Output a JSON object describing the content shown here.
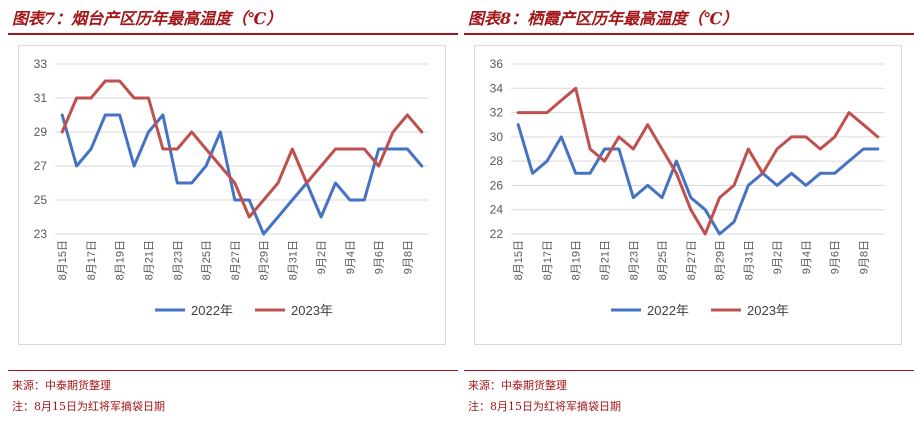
{
  "panels": [
    {
      "title": "图表7：烟台产区历年最高温度（℃）",
      "source": "来源：中泰期货整理",
      "note": "注：8月15日为红将军摘袋日期"
    },
    {
      "title": "图表8：栖霞产区历年最高温度（℃）",
      "source": "来源：中泰期货整理",
      "note": "注：8月15日为红将军摘袋日期"
    }
  ],
  "colors": {
    "series_2022": "#4472c4",
    "series_2023": "#c0504d",
    "title_red": "#a3171a",
    "grid": "#d9d9d9"
  },
  "chart_data": [
    {
      "type": "line",
      "categories": [
        "8月15日",
        "8月16日",
        "8月17日",
        "8月18日",
        "8月19日",
        "8月20日",
        "8月21日",
        "8月22日",
        "8月23日",
        "8月24日",
        "8月25日",
        "8月26日",
        "8月27日",
        "8月28日",
        "8月29日",
        "8月30日",
        "8月31日",
        "9月1日",
        "9月2日",
        "9月3日",
        "9月4日",
        "9月5日",
        "9月6日",
        "9月7日",
        "9月8日",
        "9月9日"
      ],
      "tick_labels": [
        "8月15日",
        "8月17日",
        "8月19日",
        "8月21日",
        "8月23日",
        "8月25日",
        "8月27日",
        "8月29日",
        "8月31日",
        "9月2日",
        "9月4日",
        "9月6日",
        "9月8日"
      ],
      "series": [
        {
          "name": "2022年",
          "values": [
            30,
            27,
            28,
            30,
            30,
            27,
            29,
            30,
            26,
            26,
            27,
            29,
            25,
            25,
            23,
            24,
            25,
            26,
            24,
            26,
            25,
            25,
            28,
            28,
            28,
            27
          ]
        },
        {
          "name": "2023年",
          "values": [
            29,
            31,
            31,
            32,
            32,
            31,
            31,
            28,
            28,
            29,
            28,
            27,
            26,
            24,
            25,
            26,
            28,
            26,
            27,
            28,
            28,
            28,
            27,
            29,
            30,
            29
          ]
        }
      ],
      "ylim": [
        23,
        33
      ],
      "yticks": [
        23,
        25,
        27,
        29,
        31,
        33
      ],
      "grid": true,
      "legend": "bottom"
    },
    {
      "type": "line",
      "categories": [
        "8月15日",
        "8月16日",
        "8月17日",
        "8月18日",
        "8月19日",
        "8月20日",
        "8月21日",
        "8月22日",
        "8月23日",
        "8月24日",
        "8月25日",
        "8月26日",
        "8月27日",
        "8月28日",
        "8月29日",
        "8月30日",
        "8月31日",
        "9月1日",
        "9月2日",
        "9月3日",
        "9月4日",
        "9月5日",
        "9月6日",
        "9月7日",
        "9月8日",
        "9月9日"
      ],
      "tick_labels": [
        "8月15日",
        "8月17日",
        "8月19日",
        "8月21日",
        "8月23日",
        "8月25日",
        "8月27日",
        "8月29日",
        "8月31日",
        "9月2日",
        "9月4日",
        "9月6日",
        "9月8日"
      ],
      "series": [
        {
          "name": "2022年",
          "values": [
            31,
            27,
            28,
            30,
            27,
            27,
            29,
            29,
            25,
            26,
            25,
            28,
            25,
            24,
            22,
            23,
            26,
            27,
            26,
            27,
            26,
            27,
            27,
            28,
            29,
            29
          ]
        },
        {
          "name": "2023年",
          "values": [
            32,
            32,
            32,
            33,
            34,
            29,
            28,
            30,
            29,
            31,
            29,
            27,
            24,
            22,
            25,
            26,
            29,
            27,
            29,
            30,
            30,
            29,
            30,
            32,
            31,
            30
          ]
        }
      ],
      "ylim": [
        22,
        36
      ],
      "yticks": [
        22,
        24,
        26,
        28,
        30,
        32,
        34,
        36
      ],
      "grid": true,
      "legend": "bottom"
    }
  ]
}
